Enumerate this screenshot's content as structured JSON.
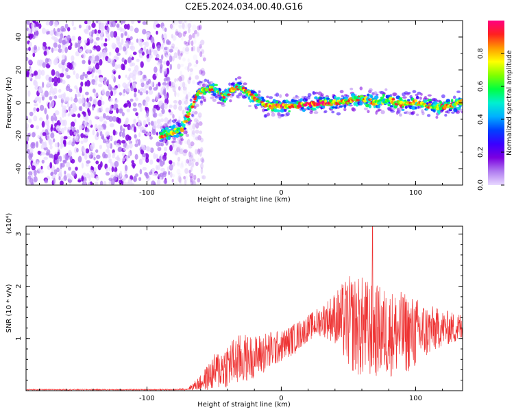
{
  "page": {
    "title": "C2E5.2024.034.00.40.G16"
  },
  "chart_data": [
    {
      "type": "heatmap",
      "title": "C2E5.2024.034.00.40.G16",
      "xlabel": "Height of straight line (km)",
      "ylabel": "Frequency (Hz)",
      "xlim": [
        -190,
        135
      ],
      "ylim": [
        -50,
        50
      ],
      "xticks": [
        -100,
        0,
        100
      ],
      "yticks": [
        -40,
        -20,
        0,
        20,
        40
      ],
      "colorbar": {
        "label": "Normalized spectral amplitude",
        "range": [
          0,
          1
        ],
        "ticks": [
          0.0,
          0.2,
          0.4,
          0.6,
          0.8
        ],
        "colors": [
          "#e8d8ff",
          "#b07cf0",
          "#7b00e0",
          "#3a00ff",
          "#0040ff",
          "#00b0ff",
          "#00f0d0",
          "#00ff40",
          "#80ff00",
          "#ffff00",
          "#ff9a00",
          "#ff2020",
          "#ff0080"
        ]
      },
      "ridge": [
        {
          "x": -90,
          "y": -20
        },
        {
          "x": -82,
          "y": -18
        },
        {
          "x": -74,
          "y": -16
        },
        {
          "x": -68,
          "y": -5
        },
        {
          "x": -62,
          "y": 6
        },
        {
          "x": -55,
          "y": 9
        },
        {
          "x": -48,
          "y": 8
        },
        {
          "x": -42,
          "y": 4
        },
        {
          "x": -36,
          "y": 8
        },
        {
          "x": -30,
          "y": 10
        },
        {
          "x": -25,
          "y": 6
        },
        {
          "x": -18,
          "y": 2
        },
        {
          "x": -10,
          "y": -2
        },
        {
          "x": 0,
          "y": -2
        },
        {
          "x": 10,
          "y": -2
        },
        {
          "x": 20,
          "y": -1
        },
        {
          "x": 30,
          "y": 0
        },
        {
          "x": 40,
          "y": 0
        },
        {
          "x": 50,
          "y": 1
        },
        {
          "x": 60,
          "y": 3
        },
        {
          "x": 70,
          "y": 0
        },
        {
          "x": 80,
          "y": 2
        },
        {
          "x": 90,
          "y": -1
        },
        {
          "x": 100,
          "y": 0
        },
        {
          "x": 110,
          "y": -2
        },
        {
          "x": 120,
          "y": -3
        },
        {
          "x": 130,
          "y": -1
        },
        {
          "x": 135,
          "y": 1
        }
      ],
      "noise_region_x": [
        -190,
        -65
      ]
    },
    {
      "type": "line",
      "xlabel": "Height of straight line (km)",
      "ylabel": "SNR (10 * v/v)",
      "yscale_label": "(x10⁴)",
      "xlim": [
        -190,
        135
      ],
      "ylim": [
        0,
        3.15
      ],
      "xticks": [
        -100,
        0,
        100
      ],
      "yticks": [
        1,
        2,
        3
      ],
      "color": "#ee3333",
      "series": [
        {
          "x": [
            -190,
            -160,
            -130,
            -100,
            -80,
            -70,
            -60,
            -50,
            -40,
            -30,
            -20,
            -10,
            0,
            10,
            20,
            30,
            40,
            50,
            60,
            70,
            80,
            90,
            100,
            110,
            120,
            130,
            135
          ],
          "mean": [
            0.02,
            0.02,
            0.02,
            0.02,
            0.02,
            0.03,
            0.15,
            0.35,
            0.5,
            0.6,
            0.65,
            0.75,
            0.85,
            1.0,
            1.2,
            1.35,
            1.4,
            1.3,
            1.2,
            1.15,
            1.1,
            1.1,
            1.1,
            1.15,
            1.2,
            1.2,
            1.2
          ],
          "spread": [
            0.01,
            0.01,
            0.01,
            0.01,
            0.01,
            0.02,
            0.15,
            0.35,
            0.45,
            0.5,
            0.4,
            0.4,
            0.3,
            0.3,
            0.25,
            0.3,
            0.5,
            0.9,
            1.0,
            0.9,
            0.85,
            0.8,
            0.7,
            0.5,
            0.35,
            0.3,
            0.3
          ]
        }
      ],
      "peak": {
        "x": 68,
        "y": 3.15
      }
    }
  ]
}
